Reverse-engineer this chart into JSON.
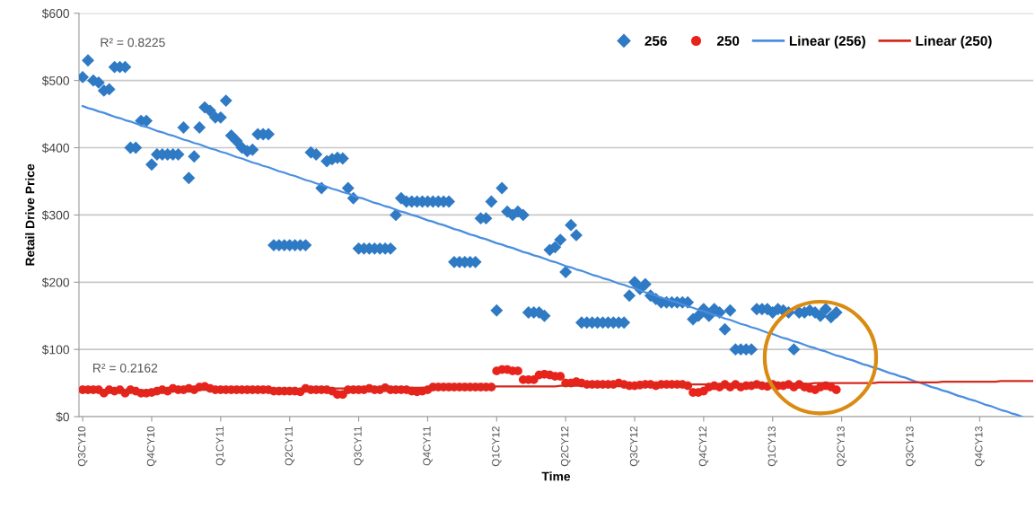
{
  "chart_data": {
    "type": "scatter",
    "xlabel": "Time",
    "ylabel": "Retail Drive Price",
    "categories": [
      "Q3CY10",
      null,
      null,
      null,
      null,
      null,
      null,
      null,
      null,
      null,
      null,
      null,
      null,
      "Q4CY10",
      null,
      null,
      null,
      null,
      null,
      null,
      null,
      null,
      null,
      null,
      null,
      null,
      "Q1CY11",
      null,
      null,
      null,
      null,
      null,
      null,
      null,
      null,
      null,
      null,
      null,
      null,
      "Q2CY11",
      null,
      null,
      null,
      null,
      null,
      null,
      null,
      null,
      null,
      null,
      null,
      null,
      "Q3CY11",
      null,
      null,
      null,
      null,
      null,
      null,
      null,
      null,
      null,
      null,
      null,
      null,
      "Q4CY11",
      null,
      null,
      null,
      null,
      null,
      null,
      null,
      null,
      null,
      null,
      null,
      null,
      "Q1CY12",
      null,
      null,
      null,
      null,
      null,
      null,
      null,
      null,
      null,
      null,
      null,
      null,
      "Q2CY12",
      null,
      null,
      null,
      null,
      null,
      null,
      null,
      null,
      null,
      null,
      null,
      null,
      "Q3CY12",
      null,
      null,
      null,
      null,
      null,
      null,
      null,
      null,
      null,
      null,
      null,
      null,
      "Q4CY12",
      null,
      null,
      null,
      null,
      null,
      null,
      null,
      null,
      null,
      null,
      null,
      null,
      "Q1CY13",
      null,
      null,
      null,
      null,
      null,
      null,
      null,
      null,
      null,
      null,
      null,
      null,
      "Q2CY13",
      null,
      null,
      null,
      null,
      null,
      null,
      null,
      null,
      null,
      null,
      null,
      null,
      "Q3CY13",
      null,
      null,
      null,
      null,
      null,
      null,
      null,
      null,
      null,
      null,
      null,
      null,
      "Q4CY13",
      null,
      null,
      null,
      null,
      null,
      null,
      null,
      null,
      null,
      null
    ],
    "ylim": [
      0,
      600
    ],
    "yticks": [
      {
        "value": 0,
        "label": "$0"
      },
      {
        "value": 100,
        "label": "$100"
      },
      {
        "value": 200,
        "label": "$200"
      },
      {
        "value": 300,
        "label": "$300"
      },
      {
        "value": 400,
        "label": "$400"
      },
      {
        "value": 500,
        "label": "$500"
      },
      {
        "value": 600,
        "label": "$600"
      }
    ],
    "grid": "y",
    "legend": "top right",
    "annotations": [
      "R² = 0.8225",
      "R² = 0.2162"
    ],
    "series": [
      {
        "name": "256",
        "marker": "diamond",
        "color": "#2f7ac4",
        "values": [
          505,
          530,
          500,
          497,
          485,
          487,
          520,
          520,
          520,
          400,
          400,
          440,
          440,
          375,
          390,
          390,
          390,
          390,
          390,
          430,
          355,
          387,
          430,
          460,
          455,
          445,
          445,
          470,
          418,
          410,
          400,
          395,
          397,
          420,
          420,
          420,
          255,
          255,
          255,
          255,
          255,
          255,
          255,
          393,
          390,
          340,
          380,
          383,
          385,
          384,
          340,
          325,
          250,
          250,
          250,
          250,
          250,
          250,
          250,
          300,
          325,
          320,
          320,
          320,
          320,
          320,
          320,
          320,
          320,
          320,
          230,
          230,
          230,
          230,
          230,
          295,
          295,
          320,
          158,
          340,
          305,
          300,
          305,
          300,
          155,
          155,
          155,
          150,
          248,
          252,
          263,
          215,
          285,
          270,
          140,
          140,
          140,
          140,
          140,
          140,
          140,
          140,
          140,
          180,
          200,
          190,
          197,
          180,
          175,
          170,
          170,
          170,
          170,
          170,
          170,
          145,
          150,
          160,
          150,
          160,
          155,
          130,
          158,
          100,
          100,
          100,
          100,
          160,
          160,
          160,
          155,
          160,
          158,
          155,
          100,
          155,
          155,
          158,
          155,
          150,
          160,
          148,
          155,
          null,
          null,
          null,
          null,
          null,
          null,
          null,
          null,
          null,
          null,
          null,
          null,
          null,
          null,
          null,
          null,
          null,
          null,
          null,
          null,
          null,
          null,
          null,
          null,
          null,
          null,
          null,
          null,
          null,
          null,
          null,
          null,
          null,
          null,
          null,
          null,
          null
        ]
      },
      {
        "name": "250",
        "marker": "circle",
        "color": "#e8231c",
        "values": [
          40,
          40,
          40,
          40,
          35,
          40,
          38,
          40,
          35,
          40,
          38,
          35,
          35,
          36,
          38,
          40,
          38,
          42,
          40,
          40,
          42,
          40,
          44,
          45,
          42,
          40,
          40,
          40,
          40,
          40,
          40,
          40,
          40,
          40,
          40,
          40,
          38,
          38,
          38,
          38,
          38,
          37,
          42,
          40,
          40,
          40,
          40,
          38,
          33,
          33,
          40,
          40,
          40,
          40,
          42,
          40,
          40,
          43,
          40,
          40,
          40,
          40,
          38,
          37,
          38,
          40,
          44,
          44,
          44,
          44,
          44,
          44,
          44,
          44,
          44,
          44,
          44,
          44,
          68,
          70,
          70,
          68,
          68,
          55,
          55,
          55,
          62,
          63,
          62,
          60,
          60,
          50,
          50,
          52,
          50,
          48,
          48,
          48,
          48,
          48,
          48,
          50,
          48,
          46,
          46,
          47,
          48,
          48,
          46,
          48,
          48,
          48,
          48,
          48,
          46,
          36,
          36,
          38,
          44,
          46,
          44,
          48,
          44,
          48,
          44,
          46,
          46,
          48,
          46,
          45,
          48,
          46,
          46,
          48,
          44,
          48,
          44,
          42,
          40,
          44,
          46,
          44,
          40,
          null,
          null,
          null,
          null,
          null,
          null,
          null,
          null,
          null,
          null,
          null,
          null,
          null,
          null,
          null,
          null,
          null,
          null,
          null,
          null,
          null,
          null,
          null,
          null,
          null,
          null,
          null,
          null,
          null,
          null,
          null,
          null,
          null,
          null,
          null,
          null,
          null
        ]
      },
      {
        "name": "Linear (256)",
        "type": "line",
        "marker": "none",
        "line_style": "solid",
        "color": "#4a8ee0",
        "values": [
          462,
          459,
          457,
          454,
          452,
          449,
          446,
          444,
          441,
          439,
          436,
          433,
          431,
          428,
          425,
          423,
          420,
          418,
          415,
          412,
          410,
          407,
          405,
          402,
          399,
          397,
          394,
          392,
          389,
          386,
          384,
          381,
          378,
          376,
          373,
          371,
          368,
          365,
          363,
          360,
          358,
          355,
          352,
          350,
          347,
          345,
          342,
          339,
          337,
          334,
          332,
          329,
          326,
          324,
          321,
          318,
          316,
          313,
          311,
          308,
          305,
          303,
          300,
          298,
          295,
          292,
          290,
          287,
          285,
          282,
          279,
          277,
          274,
          271,
          269,
          266,
          264,
          261,
          258,
          256,
          253,
          251,
          248,
          245,
          243,
          240,
          238,
          235,
          232,
          230,
          227,
          224,
          222,
          219,
          217,
          214,
          211,
          209,
          206,
          204,
          201,
          198,
          196,
          193,
          191,
          188,
          185,
          183,
          180,
          177,
          175,
          172,
          170,
          167,
          164,
          162,
          159,
          157,
          154,
          151,
          149,
          146,
          144,
          141,
          138,
          136,
          133,
          131,
          128,
          125,
          123,
          120,
          117,
          115,
          112,
          110,
          107,
          104,
          102,
          99,
          97,
          94,
          91,
          89,
          86,
          84,
          81,
          78,
          76,
          73,
          71,
          68,
          65,
          63,
          60,
          58,
          55,
          52,
          50,
          47,
          44,
          42,
          39,
          37,
          34,
          31,
          29,
          26,
          24,
          21,
          18,
          16,
          13,
          10,
          8,
          5,
          3,
          0,
          null,
          null
        ]
      },
      {
        "name": "Linear (250)",
        "type": "line",
        "marker": "none",
        "line_style": "solid",
        "color": "#d42a1e",
        "values": [
          38,
          38,
          38,
          38,
          38,
          38,
          39,
          39,
          39,
          39,
          39,
          39,
          39,
          39,
          39,
          39,
          39,
          39,
          40,
          40,
          40,
          40,
          40,
          40,
          40,
          40,
          40,
          40,
          40,
          40,
          41,
          41,
          41,
          41,
          41,
          41,
          41,
          41,
          41,
          41,
          41,
          41,
          42,
          42,
          42,
          42,
          42,
          42,
          42,
          42,
          42,
          42,
          42,
          42,
          43,
          43,
          43,
          43,
          43,
          43,
          43,
          43,
          43,
          43,
          43,
          43,
          44,
          44,
          44,
          44,
          44,
          44,
          44,
          44,
          44,
          44,
          44,
          44,
          45,
          45,
          45,
          45,
          45,
          45,
          45,
          45,
          45,
          45,
          45,
          45,
          46,
          46,
          46,
          46,
          46,
          46,
          46,
          46,
          46,
          46,
          46,
          46,
          47,
          47,
          47,
          47,
          47,
          47,
          47,
          47,
          47,
          47,
          47,
          47,
          48,
          48,
          48,
          48,
          48,
          48,
          48,
          48,
          48,
          48,
          48,
          48,
          49,
          49,
          49,
          49,
          49,
          49,
          49,
          49,
          49,
          49,
          49,
          49,
          50,
          50,
          50,
          50,
          50,
          50,
          50,
          50,
          50,
          50,
          50,
          50,
          51,
          51,
          51,
          51,
          51,
          51,
          51,
          51,
          51,
          51,
          51,
          51,
          52,
          52,
          52,
          52,
          52,
          52,
          52,
          52,
          52,
          52,
          52,
          53,
          53,
          53,
          53,
          53,
          53,
          53
        ]
      }
    ]
  }
}
